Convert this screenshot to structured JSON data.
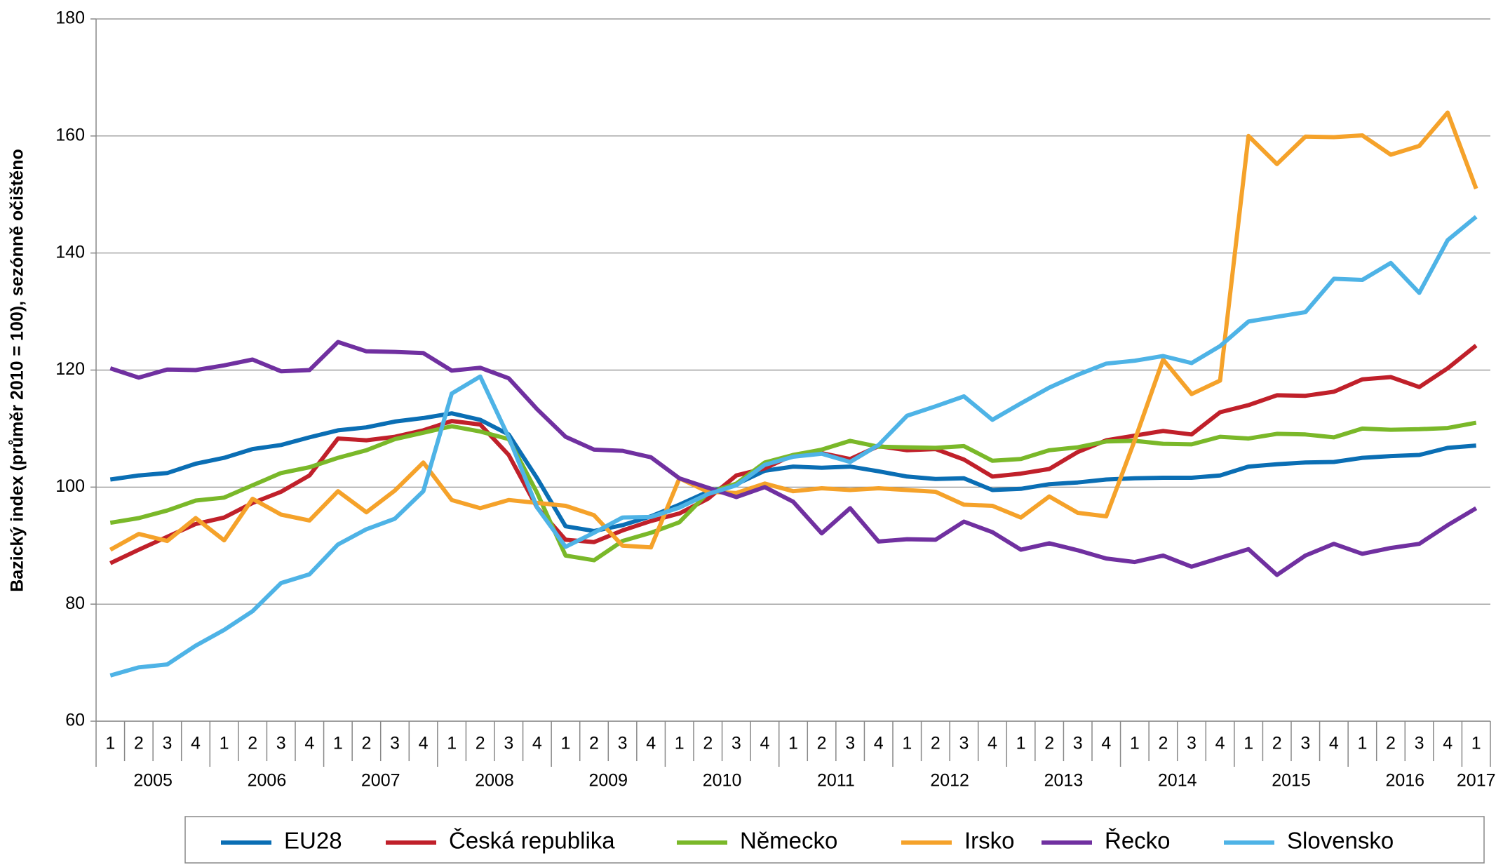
{
  "chart_data": {
    "type": "line",
    "y_label": "Bazický index (průměr 2010 = 100), sezónně očištěno",
    "categories": [
      "1",
      "2",
      "3",
      "4",
      "1",
      "2",
      "3",
      "4",
      "1",
      "2",
      "3",
      "4",
      "1",
      "2",
      "3",
      "4",
      "1",
      "2",
      "3",
      "4",
      "1",
      "2",
      "3",
      "4",
      "1",
      "2",
      "3",
      "4",
      "1",
      "2",
      "3",
      "4",
      "1",
      "2",
      "3",
      "4",
      "1",
      "2",
      "3",
      "4",
      "1",
      "2",
      "3",
      "4",
      "1",
      "2",
      "3",
      "4",
      "1"
    ],
    "years": [
      "2005",
      "2006",
      "2007",
      "2008",
      "2009",
      "2010",
      "2011",
      "2012",
      "2013",
      "2014",
      "2015",
      "2016",
      "2017"
    ],
    "ylim": [
      60,
      180
    ],
    "yticks": [
      60,
      80,
      100,
      120,
      140,
      160,
      180
    ],
    "series": [
      {
        "name": "EU28",
        "color": "#0a6eb4",
        "values": [
          101.3,
          102,
          102.4,
          104,
          105,
          106.5,
          107.2,
          108.5,
          109.7,
          110.2,
          111.2,
          111.8,
          112.6,
          111.5,
          109,
          101.5,
          93.3,
          92.5,
          93.5,
          95,
          97,
          99.2,
          100.5,
          102.8,
          103.5,
          103.3,
          103.5,
          102.7,
          101.8,
          101.4,
          101.5,
          99.5,
          99.7,
          100.5,
          100.8,
          101.3,
          101.5,
          101.6,
          101.6,
          102,
          103.5,
          103.9,
          104.2,
          104.3,
          105,
          105.3,
          105.5,
          106.7,
          107.1
        ]
      },
      {
        "name": "Česká republika",
        "color": "#c0202a",
        "values": [
          87,
          89.3,
          91.5,
          93.7,
          94.8,
          97.3,
          99.2,
          102,
          108.3,
          108,
          108.6,
          109.7,
          111.3,
          110.7,
          105.5,
          96.5,
          91,
          90.6,
          92.6,
          94.2,
          95.5,
          98,
          102,
          103.2,
          105.5,
          105.8,
          104.8,
          107,
          106.3,
          106.5,
          104.7,
          101.8,
          102.3,
          103.1,
          106,
          108,
          108.8,
          109.6,
          109,
          112.8,
          114,
          115.7,
          115.6,
          116.3,
          118.4,
          118.8,
          117.1,
          120.3,
          124.2
        ]
      },
      {
        "name": "Německo",
        "color": "#7ab829",
        "values": [
          93.9,
          94.7,
          96,
          97.7,
          98.2,
          100.3,
          102.4,
          103.4,
          105,
          106.3,
          108.2,
          109.3,
          110.4,
          109.5,
          108.2,
          99,
          88.3,
          87.5,
          90.8,
          92.2,
          94,
          99,
          100.6,
          104.2,
          105.5,
          106.4,
          107.9,
          106.9,
          106.8,
          106.7,
          107,
          104.5,
          104.8,
          106.3,
          106.8,
          107.8,
          107.9,
          107.4,
          107.3,
          108.6,
          108.3,
          109.1,
          109,
          108.5,
          110,
          109.8,
          109.9,
          110.1,
          111
        ]
      },
      {
        "name": "Irsko",
        "color": "#f5a22a",
        "values": [
          89.3,
          92,
          90.8,
          94.7,
          90.9,
          98,
          95.3,
          94.3,
          99.3,
          95.7,
          99.4,
          104.2,
          97.8,
          96.4,
          97.8,
          97.3,
          96.8,
          95.2,
          90,
          89.7,
          101.5,
          99.2,
          99,
          100.6,
          99.3,
          99.8,
          99.5,
          99.8,
          99.5,
          99.2,
          97,
          96.8,
          94.8,
          98.4,
          95.6,
          95,
          108,
          121.8,
          115.9,
          118.2,
          160,
          155.2,
          159.9,
          159.8,
          160.1,
          156.8,
          158.3,
          164,
          151
        ]
      },
      {
        "name": "Řecko",
        "color": "#7030a0",
        "values": [
          120.3,
          118.7,
          120.1,
          120,
          120.8,
          121.8,
          119.8,
          120,
          124.8,
          123.2,
          123.1,
          122.9,
          119.9,
          120.4,
          118.6,
          113.3,
          108.6,
          106.4,
          106.2,
          105.1,
          101.5,
          99.9,
          98.3,
          100,
          97.5,
          92.1,
          96.4,
          90.7,
          91.1,
          91,
          94.1,
          92.3,
          89.3,
          90.4,
          89.2,
          87.8,
          87.2,
          88.3,
          86.4,
          87.9,
          89.4,
          85,
          88.3,
          90.3,
          88.6,
          89.6,
          90.3,
          93.5,
          96.4
        ]
      },
      {
        "name": "Slovensko",
        "color": "#4eb3e6",
        "values": [
          67.8,
          69.2,
          69.7,
          72.9,
          75.6,
          78.8,
          83.6,
          85.1,
          90.2,
          92.8,
          94.6,
          99.3,
          116,
          118.9,
          108.5,
          96.5,
          89.8,
          92.2,
          94.8,
          94.9,
          96.5,
          98.8,
          100.3,
          103.8,
          105.2,
          105.7,
          104.3,
          107.2,
          112.2,
          113.8,
          115.5,
          111.5,
          114.3,
          117,
          119.2,
          121.1,
          121.6,
          122.4,
          121.2,
          124.1,
          128.3,
          129.1,
          129.9,
          135.6,
          135.4,
          138.3,
          133.2,
          142.2,
          146.2
        ]
      }
    ]
  }
}
